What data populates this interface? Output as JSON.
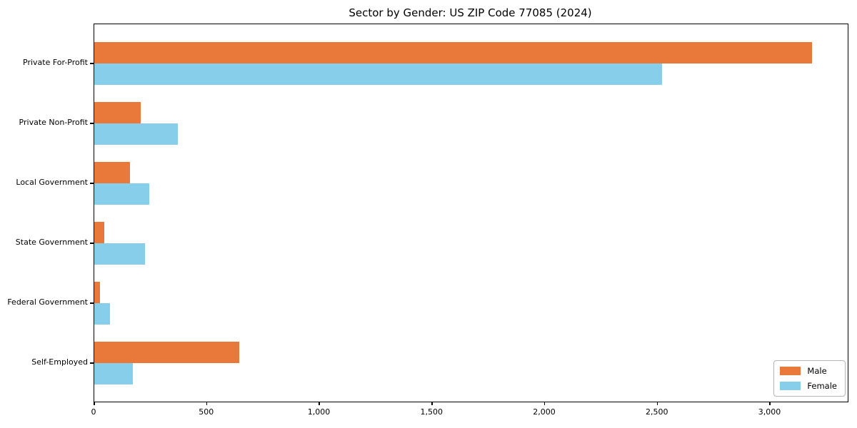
{
  "chart_data": {
    "type": "bar",
    "orientation": "horizontal",
    "title": "Sector by Gender: US ZIP Code 77085 (2024)",
    "categories": [
      "Private For-Profit",
      "Private Non-Profit",
      "Local Government",
      "State Government",
      "Federal Government",
      "Self-Employed"
    ],
    "series": [
      {
        "name": "Male",
        "color": "#e8793b",
        "values": [
          3185,
          205,
          160,
          45,
          25,
          645
        ]
      },
      {
        "name": "Female",
        "color": "#87ceeb",
        "values": [
          2520,
          370,
          245,
          225,
          70,
          170
        ]
      }
    ],
    "xlabel": "",
    "ylabel": "",
    "xlim": [
      0,
      3344
    ],
    "xticks": [
      0,
      500,
      1000,
      1500,
      2000,
      2500,
      3000
    ],
    "xtick_labels": [
      "0",
      "500",
      "1,000",
      "1,500",
      "2,000",
      "2,500",
      "3,000"
    ],
    "grid": false,
    "legend_position": "lower right",
    "background_color": "#ffffff",
    "axis_color": "#000000"
  }
}
